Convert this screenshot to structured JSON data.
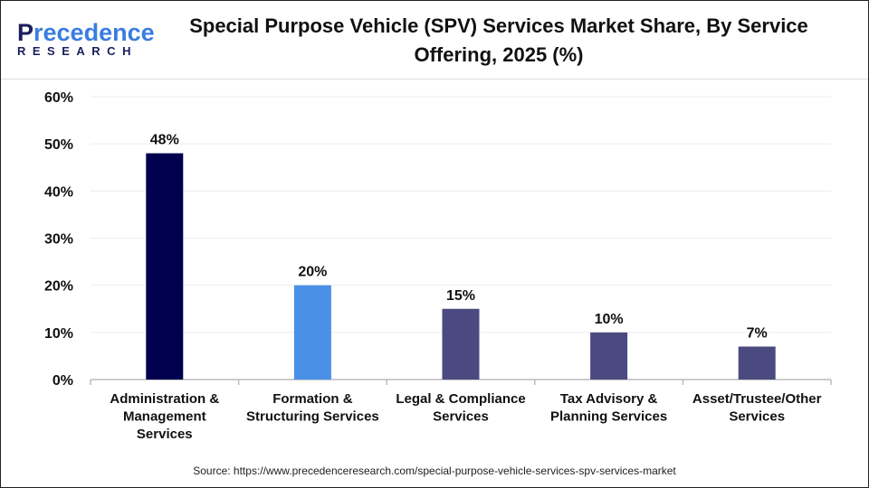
{
  "logo": {
    "line1": "Precedence",
    "line2": "RESEARCH"
  },
  "title": "Special Purpose Vehicle (SPV) Services Market  Share, By Service Offering, 2025 (%)",
  "source": "Source: https://www.precedenceresearch.com/special-purpose-vehicle-services-spv-services-market",
  "chart_data": {
    "type": "bar",
    "title": "Special Purpose Vehicle (SPV) Services Market  Share, By Service Offering, 2025 (%)",
    "categories": [
      [
        "Administration &",
        "Management",
        "Services"
      ],
      [
        "Formation &",
        "Structuring Services"
      ],
      [
        "Legal & Compliance",
        "Services"
      ],
      [
        "Tax Advisory &",
        "Planning Services"
      ],
      [
        "Asset/Trustee/Other",
        "Services"
      ]
    ],
    "values": [
      48,
      20,
      15,
      10,
      7
    ],
    "data_labels": [
      "48%",
      "20%",
      "15%",
      "10%",
      "7%"
    ],
    "colors": [
      "#00004f",
      "#4a90e8",
      "#4a4a80",
      "#4a4a80",
      "#4a4a80"
    ],
    "ylim": [
      0,
      60
    ],
    "yticks": [
      "0%",
      "10%",
      "20%",
      "30%",
      "40%",
      "50%",
      "60%"
    ],
    "grid": true,
    "xlabel": "",
    "ylabel": ""
  }
}
